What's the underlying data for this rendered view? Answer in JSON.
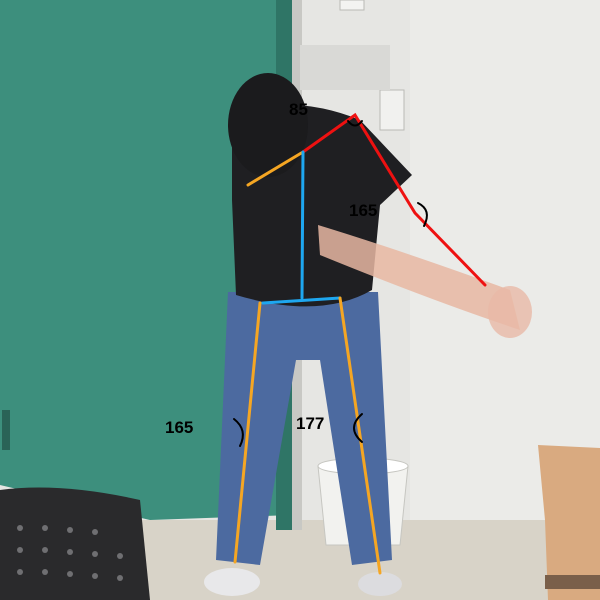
{
  "pose_overlay": {
    "colors": {
      "shoulder_line": "#f5a623",
      "arm": "#ee1111",
      "spine": "#1ea7f0",
      "legs": "#f5a623",
      "angle_text": "#000000"
    },
    "angles": {
      "shoulder": "85",
      "elbow": "165",
      "left_knee": "165",
      "right_knee": "177"
    }
  }
}
